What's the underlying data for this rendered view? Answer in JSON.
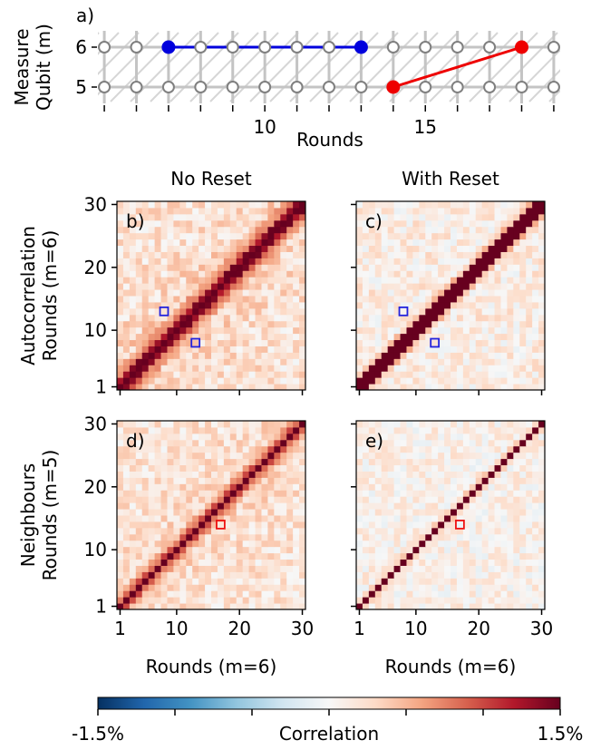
{
  "chart_data": [
    {
      "panel": "a)",
      "type": "scatter",
      "xlabel": "Rounds",
      "ylabel_lines": [
        "Measure",
        "Qubit (m)"
      ],
      "x_ticks": [
        10,
        15
      ],
      "y_ticks": [
        5,
        6
      ],
      "xlim": [
        4.8,
        19.2
      ],
      "rounds": [
        5,
        6,
        7,
        8,
        9,
        10,
        11,
        12,
        13,
        14,
        15,
        16,
        17,
        18,
        19
      ],
      "rows": [
        5,
        6
      ],
      "highlight_lines": [
        {
          "color": "#0000dd",
          "points": [
            [
              7,
              6
            ],
            [
              13,
              6
            ]
          ]
        },
        {
          "color": "#ee0000",
          "points": [
            [
              14,
              5
            ],
            [
              18,
              6
            ]
          ]
        }
      ]
    },
    {
      "type": "heatmap",
      "panels": [
        {
          "label": "b)",
          "variant": "no-reset-auto",
          "boxes": [
            [
              8,
              13
            ],
            [
              13,
              8
            ]
          ],
          "box_color": "#2222dd"
        },
        {
          "label": "c)",
          "variant": "reset-auto",
          "boxes": [
            [
              8,
              13
            ],
            [
              13,
              8
            ]
          ],
          "box_color": "#2222dd"
        },
        {
          "label": "d)",
          "variant": "no-reset-neigh",
          "boxes": [
            [
              17,
              14
            ]
          ],
          "box_color": "#ee1111"
        },
        {
          "label": "e)",
          "variant": "reset-neigh",
          "boxes": [
            [
              17,
              14
            ]
          ],
          "box_color": "#ee1111"
        }
      ],
      "column_titles": [
        "No Reset",
        "With Reset"
      ],
      "row_ylabels": [
        [
          "Autocorrelation",
          "Rounds (m=6)"
        ],
        [
          "Neighbours",
          "Rounds (m=5)"
        ]
      ],
      "xlabel": "Rounds (m=6)",
      "tick_labels": [
        "1",
        "10",
        "20",
        "30"
      ],
      "axis_range": [
        1,
        30
      ],
      "colorbar": {
        "label": "Correlation",
        "min_label": "-1.5%",
        "max_label": "1.5%",
        "vmin": -1.5,
        "vmax": 1.5
      }
    }
  ]
}
